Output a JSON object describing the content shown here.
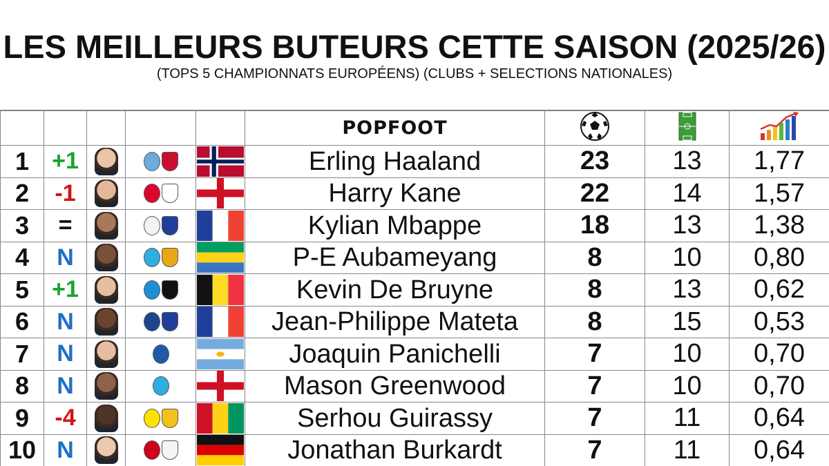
{
  "title": "LES MEILLEURS BUTEURS CETTE SAISON (2025/26)",
  "subtitle": "(TOPS 5 CHAMPIONNATS EUROPÉENS) (CLUBS + SELECTIONS NATIONALES)",
  "brand": "POPFOOT",
  "header_icons": [
    "soccer-ball-icon",
    "pitch-icon",
    "bar-chart-icon"
  ],
  "chart_data": {
    "type": "table",
    "columns": [
      "position",
      "movement",
      "player",
      "goals",
      "matches",
      "ratio"
    ],
    "rows": [
      {
        "pos": "1",
        "move": "+1",
        "name": "Erling Haaland",
        "goals": "23",
        "matches": "13",
        "ratio": "1,77"
      },
      {
        "pos": "2",
        "move": "-1",
        "name": "Harry Kane",
        "goals": "22",
        "matches": "14",
        "ratio": "1,57"
      },
      {
        "pos": "3",
        "move": "=",
        "name": "Kylian Mbappe",
        "goals": "18",
        "matches": "13",
        "ratio": "1,38"
      },
      {
        "pos": "4",
        "move": "N",
        "name": "P-E Aubameyang",
        "goals": "8",
        "matches": "10",
        "ratio": "0,80"
      },
      {
        "pos": "5",
        "move": "+1",
        "name": "Kevin De Bruyne",
        "goals": "8",
        "matches": "13",
        "ratio": "0,62"
      },
      {
        "pos": "6",
        "move": "N",
        "name": "Jean-Philippe Mateta",
        "goals": "8",
        "matches": "15",
        "ratio": "0,53"
      },
      {
        "pos": "7",
        "move": "N",
        "name": "Joaquin Panichelli",
        "goals": "7",
        "matches": "10",
        "ratio": "0,70"
      },
      {
        "pos": "8",
        "move": "N",
        "name": "Mason Greenwood",
        "goals": "7",
        "matches": "10",
        "ratio": "0,70"
      },
      {
        "pos": "9",
        "move": "-4",
        "name": "Serhou Guirassy",
        "goals": "7",
        "matches": "11",
        "ratio": "0,64"
      },
      {
        "pos": "10",
        "move": "N",
        "name": "Jonathan Burkardt",
        "goals": "7",
        "matches": "11",
        "ratio": "0,64"
      }
    ]
  },
  "colors": {
    "up": "#1aa32e",
    "down": "#d41414",
    "new": "#1f6fc6"
  }
}
